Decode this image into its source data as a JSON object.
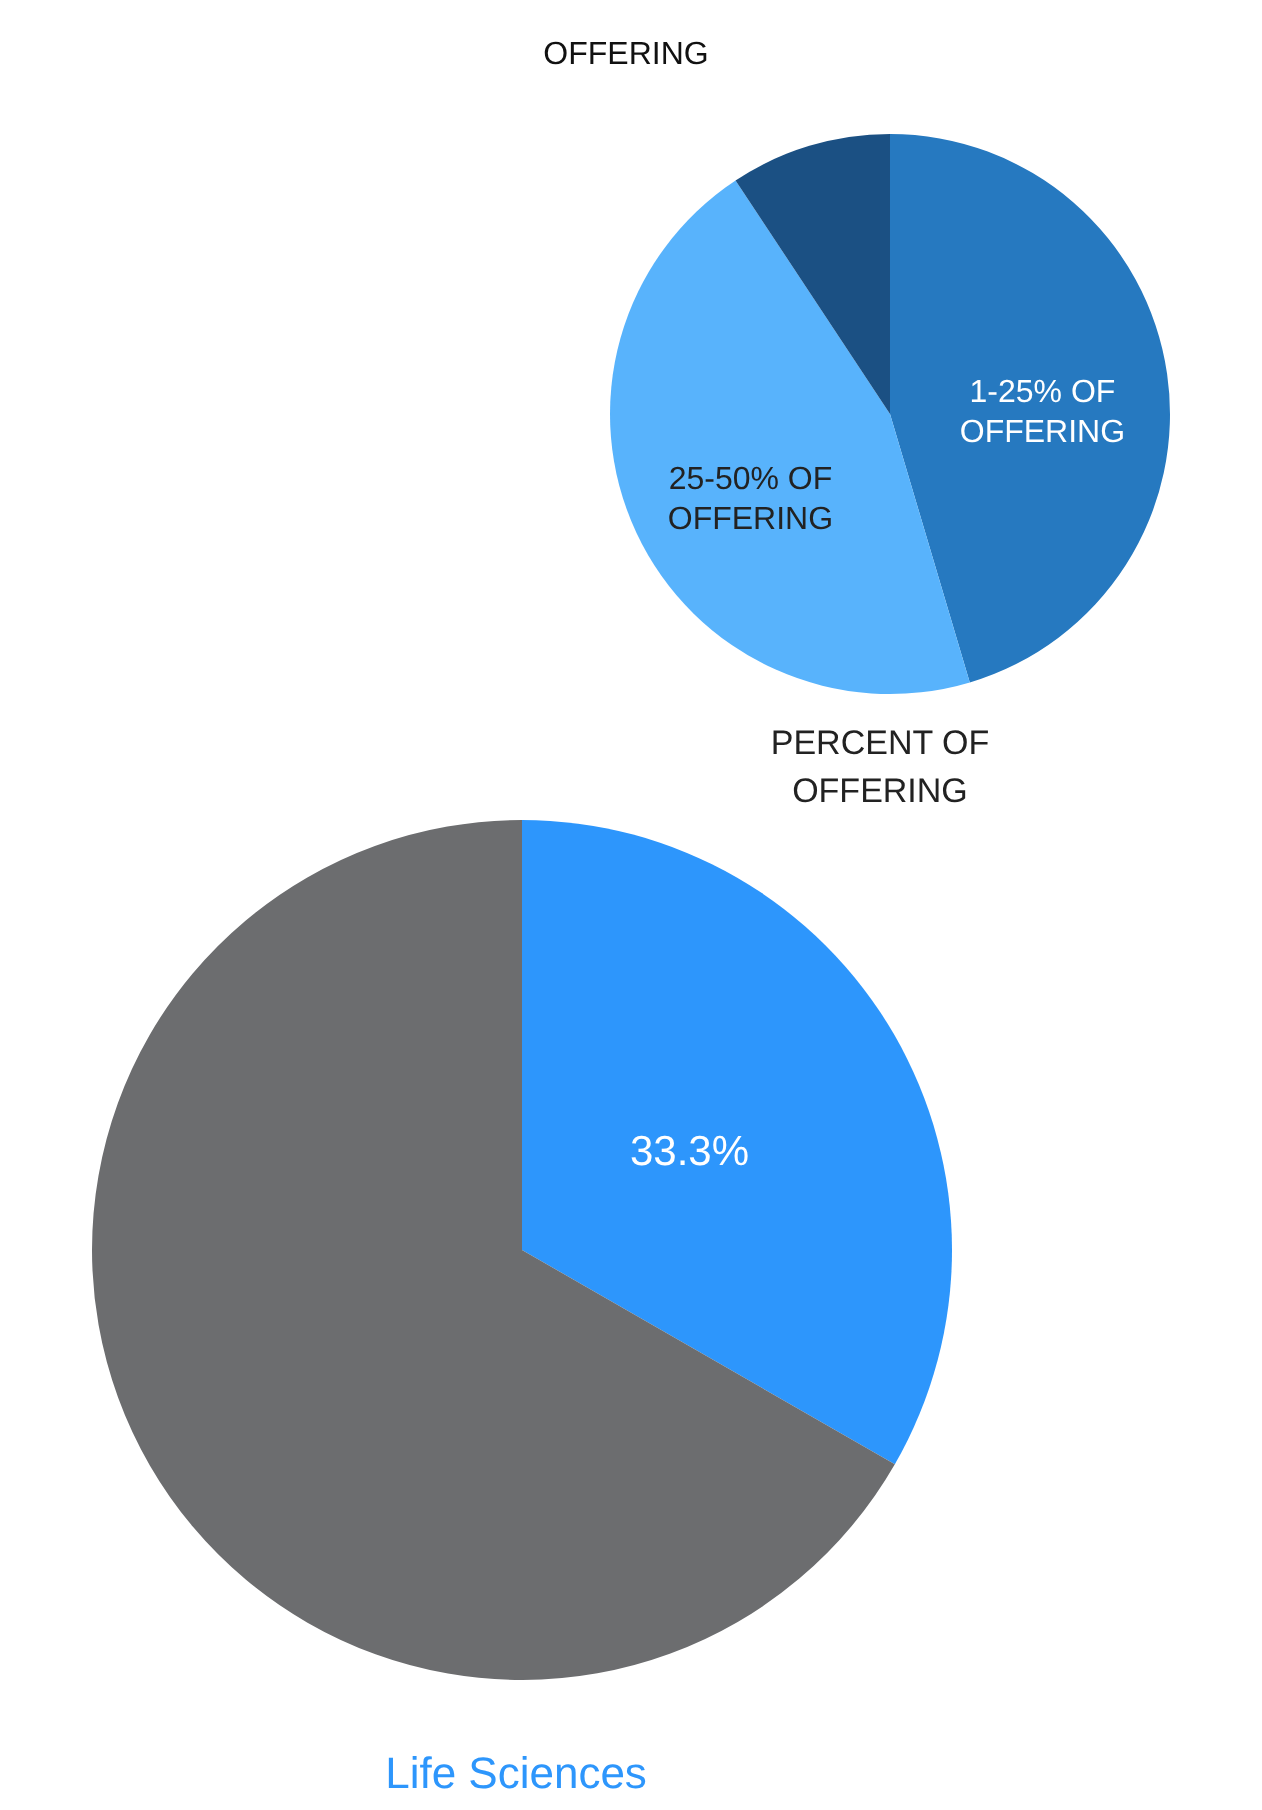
{
  "chart_data": [
    {
      "type": "pie",
      "title": "PERCENT OF OFFERING",
      "annotations": [
        "OFFERING"
      ],
      "categories": [
        "1-25% OF OFFERING",
        "25-50% OF OFFERING",
        null
      ],
      "values": [
        45.4,
        45.3,
        9.3
      ],
      "colors": [
        "#2679c0",
        "#58b3fc",
        "#1b5083"
      ],
      "legend": false
    },
    {
      "type": "pie",
      "title": "Life Sciences",
      "categories": [
        null,
        null
      ],
      "values": [
        33.3,
        66.7
      ],
      "colors": [
        "#2d96fc",
        "#6c6d6f"
      ],
      "value_labels": [
        "33.3%",
        null
      ],
      "legend": false
    }
  ]
}
